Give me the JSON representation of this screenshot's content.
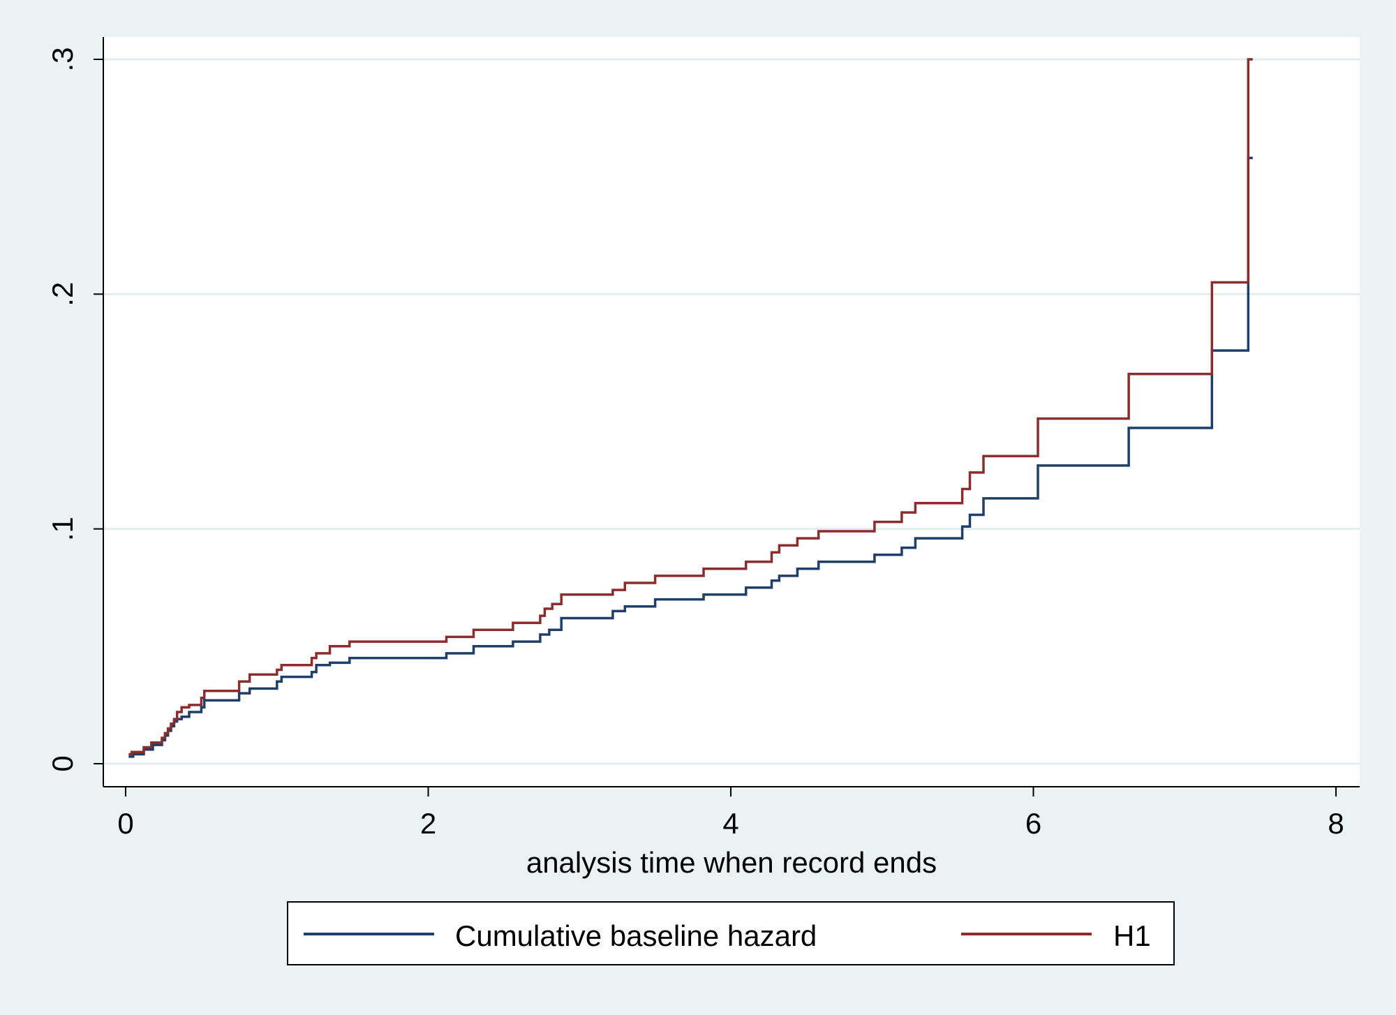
{
  "chart_data": {
    "type": "line",
    "step": true,
    "xlabel": "analysis time when record ends",
    "ylabel": "",
    "xlim": [
      0,
      8
    ],
    "ylim": [
      0,
      0.3
    ],
    "x_ticks": [
      0,
      2,
      4,
      6,
      8
    ],
    "x_tick_labels": [
      "0",
      "2",
      "4",
      "6",
      "8"
    ],
    "y_ticks": [
      0,
      0.1,
      0.2,
      0.3
    ],
    "y_tick_labels": [
      "0",
      ".1",
      ".2",
      ".3"
    ],
    "grid": "horizontal",
    "legend": "bottom",
    "series": [
      {
        "name": "Cumulative baseline hazard",
        "color": "#1f3f6b",
        "x": [
          0.02,
          0.05,
          0.12,
          0.18,
          0.24,
          0.26,
          0.28,
          0.3,
          0.32,
          0.34,
          0.37,
          0.42,
          0.5,
          0.52,
          0.75,
          0.82,
          1.0,
          1.03,
          1.23,
          1.26,
          1.35,
          1.48,
          2.12,
          2.3,
          2.56,
          2.74,
          2.8,
          2.88,
          3.22,
          3.3,
          3.5,
          3.82,
          4.1,
          4.27,
          4.32,
          4.44,
          4.58,
          4.95,
          5.13,
          5.22,
          5.53,
          5.58,
          5.67,
          6.03,
          6.63,
          7.18,
          7.42,
          7.45
        ],
        "y": [
          0.003,
          0.004,
          0.006,
          0.008,
          0.01,
          0.012,
          0.014,
          0.016,
          0.018,
          0.019,
          0.02,
          0.022,
          0.024,
          0.027,
          0.03,
          0.032,
          0.035,
          0.037,
          0.039,
          0.042,
          0.043,
          0.045,
          0.047,
          0.05,
          0.052,
          0.055,
          0.057,
          0.062,
          0.065,
          0.067,
          0.07,
          0.072,
          0.075,
          0.078,
          0.08,
          0.083,
          0.086,
          0.089,
          0.092,
          0.096,
          0.101,
          0.106,
          0.113,
          0.127,
          0.143,
          0.176,
          0.258,
          0.258
        ]
      },
      {
        "name": "H1",
        "color": "#8b2d2d",
        "x": [
          0.02,
          0.04,
          0.12,
          0.17,
          0.24,
          0.26,
          0.28,
          0.3,
          0.32,
          0.34,
          0.37,
          0.42,
          0.5,
          0.52,
          0.75,
          0.82,
          1.0,
          1.03,
          1.23,
          1.26,
          1.35,
          1.48,
          2.12,
          2.3,
          2.56,
          2.74,
          2.77,
          2.82,
          2.88,
          3.22,
          3.3,
          3.5,
          3.82,
          4.1,
          4.27,
          4.32,
          4.44,
          4.58,
          4.95,
          5.13,
          5.22,
          5.53,
          5.58,
          5.67,
          6.03,
          6.63,
          7.18,
          7.42,
          7.45
        ],
        "y": [
          0.004,
          0.005,
          0.007,
          0.009,
          0.011,
          0.013,
          0.015,
          0.017,
          0.019,
          0.022,
          0.024,
          0.025,
          0.028,
          0.031,
          0.035,
          0.038,
          0.04,
          0.042,
          0.045,
          0.047,
          0.05,
          0.052,
          0.054,
          0.057,
          0.06,
          0.063,
          0.066,
          0.068,
          0.072,
          0.074,
          0.077,
          0.08,
          0.083,
          0.086,
          0.09,
          0.093,
          0.096,
          0.099,
          0.103,
          0.107,
          0.111,
          0.117,
          0.124,
          0.131,
          0.147,
          0.166,
          0.205,
          0.3,
          0.3
        ]
      }
    ]
  }
}
